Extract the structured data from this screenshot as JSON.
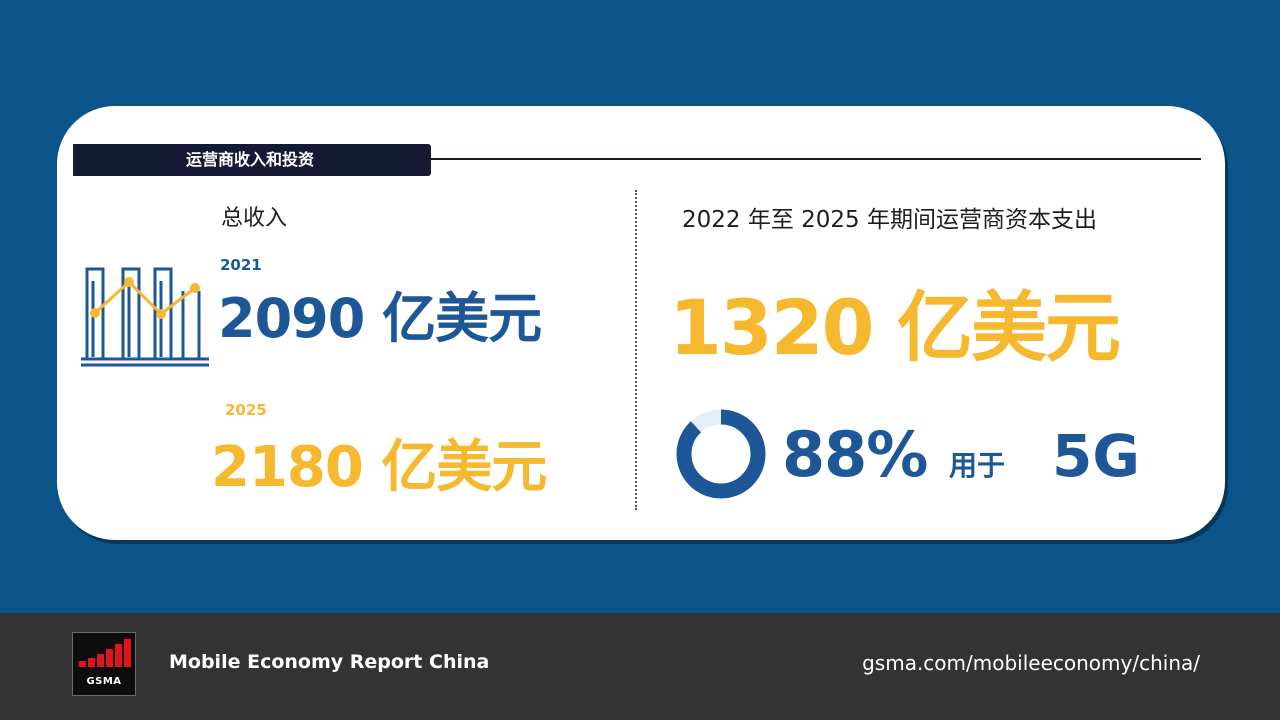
{
  "section": {
    "tag": "运营商收入和投资"
  },
  "revenue": {
    "label": "总收入",
    "items": [
      {
        "year": "2021",
        "value": "2090 亿美元"
      },
      {
        "year": "2025",
        "value": "2180 亿美元"
      }
    ]
  },
  "capex": {
    "label": "2022 年至 2025 年期间运营商资本支出",
    "value": "1320 亿美元",
    "share": {
      "value_text": "88%",
      "connector": "用于",
      "target": "5G",
      "fraction": 0.88
    }
  },
  "icons": {
    "chart": "bar-line-chart-icon",
    "donut": "donut-ring-icon",
    "logo": "gsma-logo-icon"
  },
  "colors": {
    "background": "#0b5489",
    "blue": "#1e5797",
    "yellow": "#f5b82e",
    "dark": "#141a33",
    "footer": "#333334",
    "brand_red": "#e0151b"
  },
  "footer": {
    "logo_text": "GSMA",
    "title": "Mobile Economy Report China",
    "url": "gsma.com/mobileeconomy/china/"
  }
}
